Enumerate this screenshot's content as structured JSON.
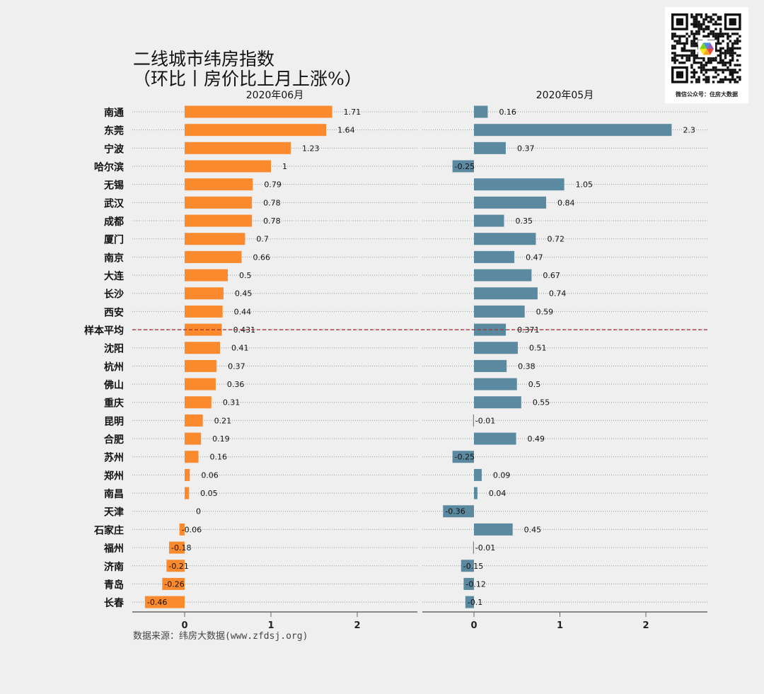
{
  "chart_data": {
    "type": "bar",
    "orientation": "horizontal",
    "title": "二线城市纬房指数",
    "subtitle": "（环比丨房价比上月上涨%）",
    "categories": [
      "南通",
      "东莞",
      "宁波",
      "哈尔滨",
      "无锡",
      "武汉",
      "成都",
      "厦门",
      "南京",
      "大连",
      "长沙",
      "西安",
      "样本平均",
      "沈阳",
      "杭州",
      "佛山",
      "重庆",
      "昆明",
      "合肥",
      "苏州",
      "郑州",
      "南昌",
      "天津",
      "石家庄",
      "福州",
      "济南",
      "青岛",
      "长春"
    ],
    "panels": [
      {
        "name": "2020年06月",
        "color": "#fb8a2e",
        "xlim": [
          -0.6,
          2.7
        ],
        "xticks": [
          0,
          1,
          2
        ],
        "values": [
          1.71,
          1.64,
          1.23,
          1,
          0.79,
          0.78,
          0.78,
          0.7,
          0.66,
          0.5,
          0.45,
          0.44,
          0.431,
          0.41,
          0.37,
          0.36,
          0.31,
          0.21,
          0.19,
          0.16,
          0.06,
          0.05,
          0,
          -0.06,
          -0.18,
          -0.21,
          -0.26,
          -0.46
        ]
      },
      {
        "name": "2020年05月",
        "color": "#5b8aa0",
        "xlim": [
          -0.6,
          2.7
        ],
        "xticks": [
          0,
          1,
          2
        ],
        "values": [
          0.16,
          2.3,
          0.37,
          -0.25,
          1.05,
          0.84,
          0.35,
          0.72,
          0.47,
          0.67,
          0.74,
          0.59,
          0.371,
          0.51,
          0.38,
          0.5,
          0.55,
          -0.01,
          0.49,
          -0.25,
          0.09,
          0.04,
          -0.36,
          0.45,
          -0.01,
          -0.15,
          -0.12,
          -0.1
        ]
      }
    ],
    "reference_line": {
      "category": "样本平均",
      "color": "#b03030",
      "style": "dashed"
    },
    "grid": "dotted horizontal",
    "legend": "none"
  },
  "source": "数据来源：纬房大数据(www.zfdsj.org)",
  "qr": {
    "caption": "微信公众号：住房大数据"
  }
}
